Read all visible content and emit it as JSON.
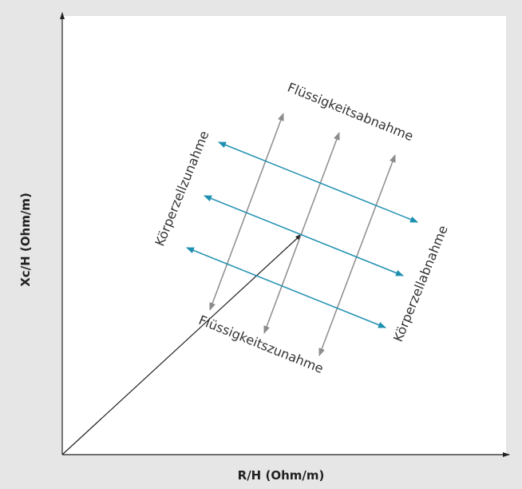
{
  "axes": {
    "x_label": "R/H (Ohm/m)",
    "y_label": "Xc/H (Ohm/m)"
  },
  "labels": {
    "fluid_decrease": "Flüssigkeitsabnahme",
    "fluid_increase": "Flüssigkeitszunahme",
    "cell_increase": "Körperzellzunahme",
    "cell_decrease": "Körperzellabnahme"
  },
  "colors": {
    "background": "#e6e6e6",
    "plot": "#ffffff",
    "gray_arrows": "#8c8c8c",
    "blue_arrows": "#1f8fb0",
    "axis": "#222222"
  }
}
